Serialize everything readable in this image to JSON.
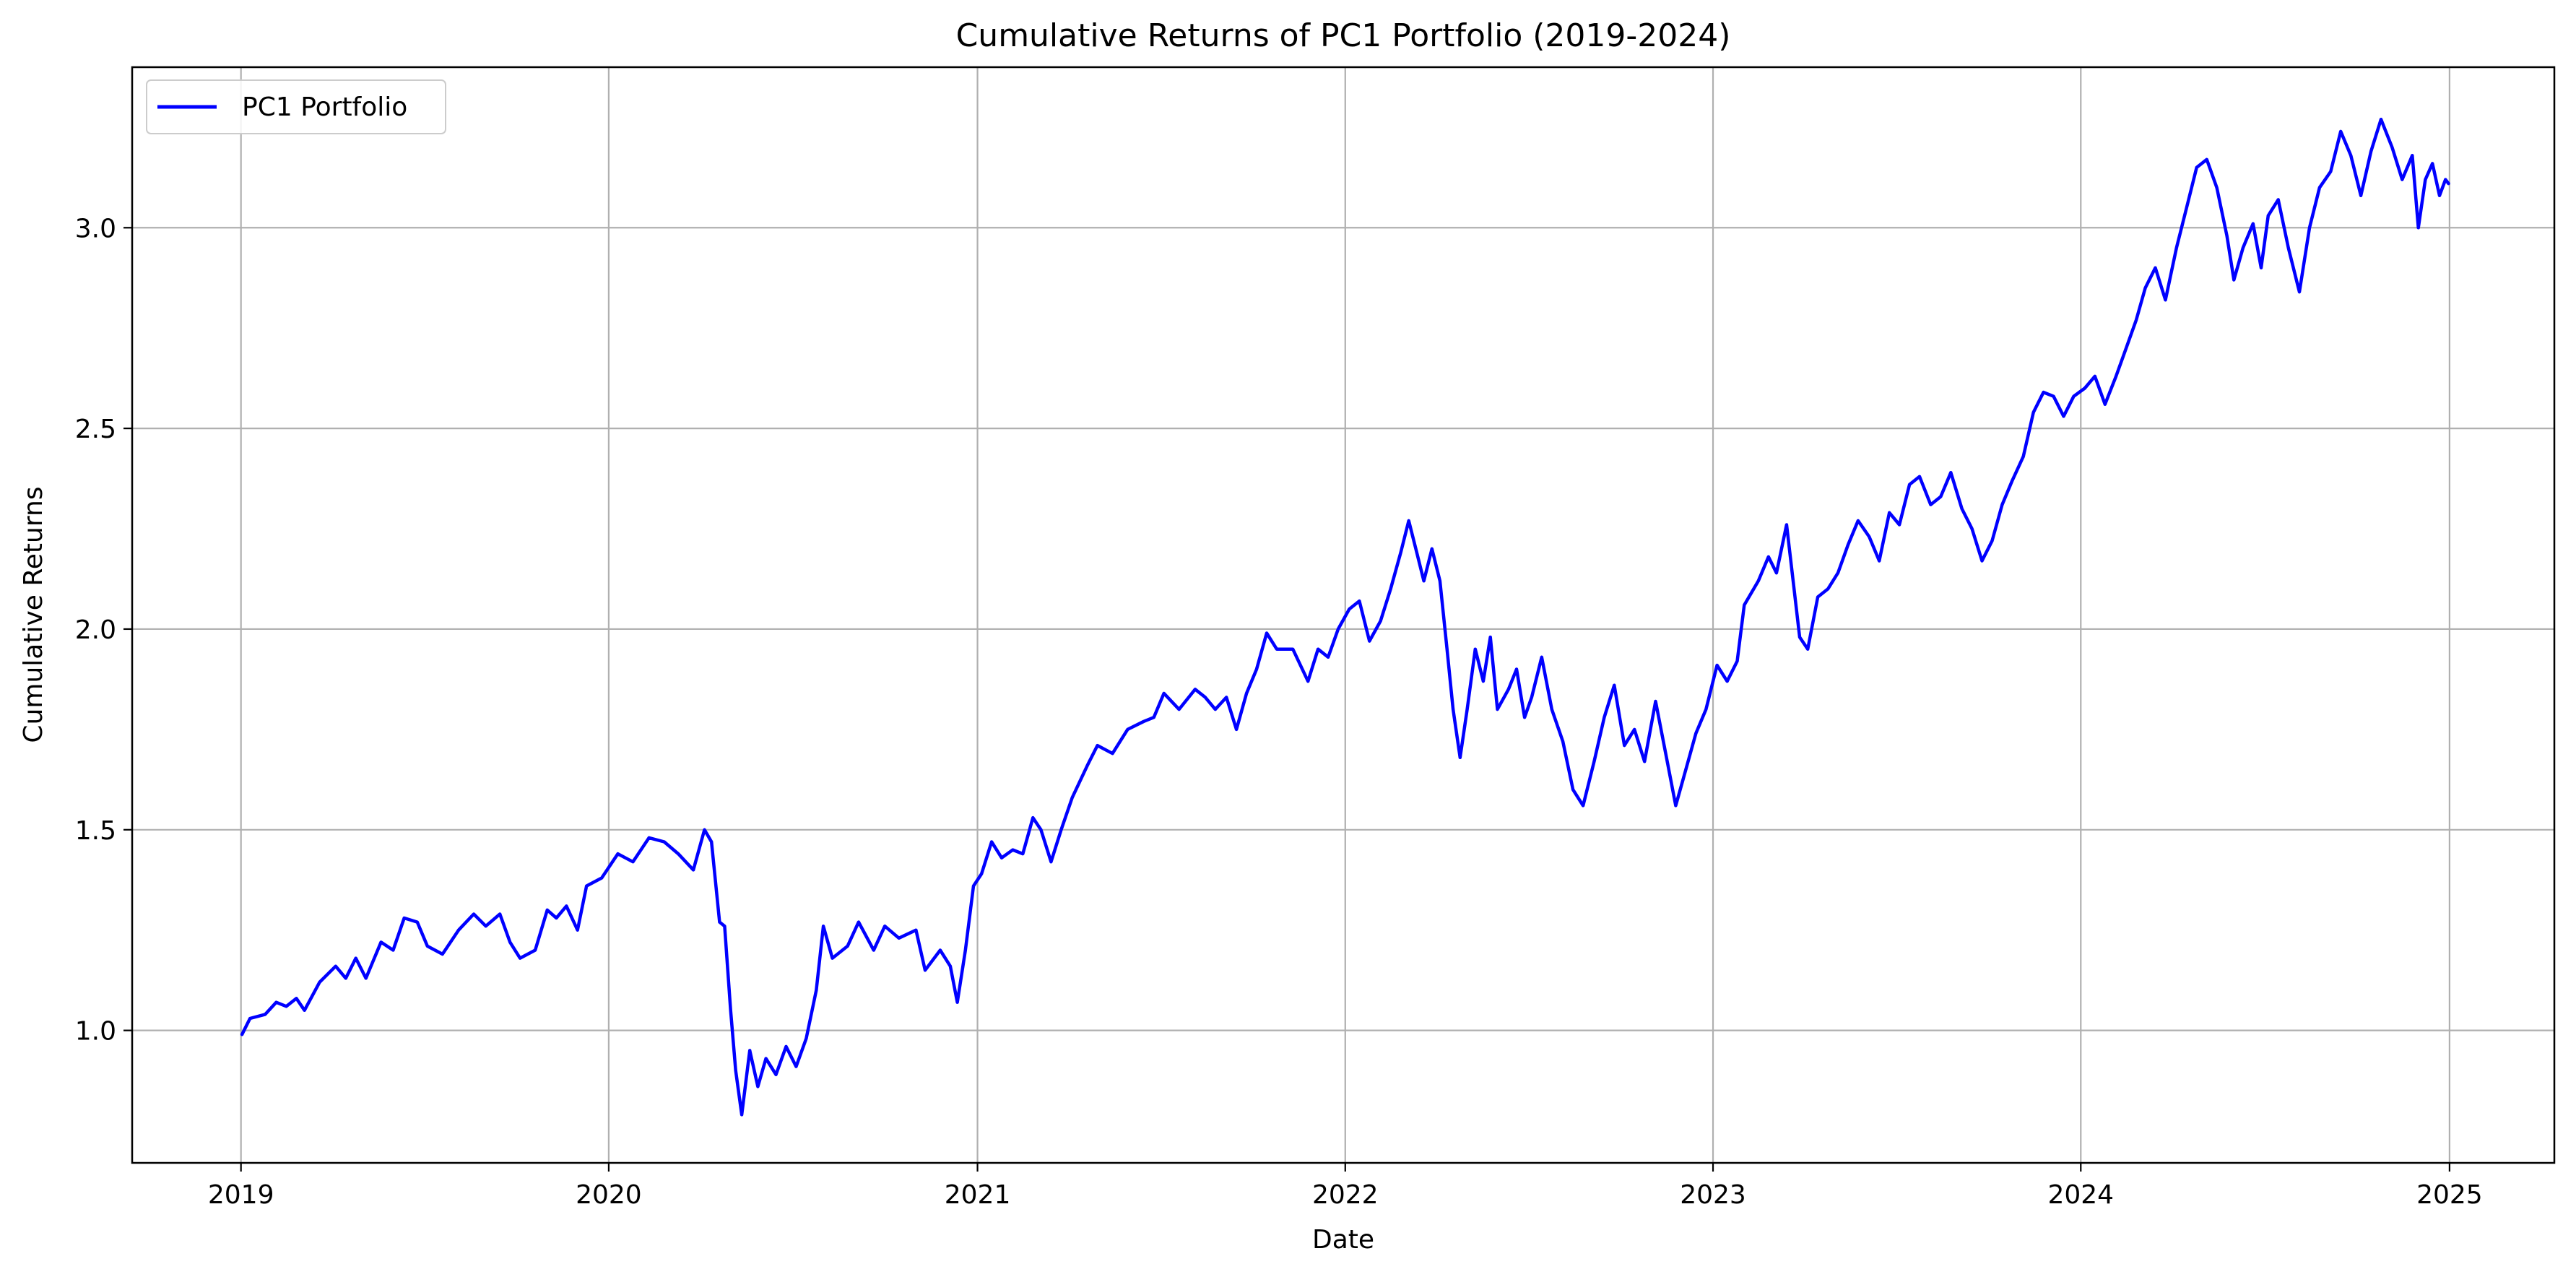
{
  "chart_data": {
    "type": "line",
    "title": "Cumulative Returns of PC1 Portfolio (2019-2024)",
    "xlabel": "Date",
    "ylabel": "Cumulative Returns",
    "x_type": "date",
    "xlim": [
      "2018-09-15",
      "2025-04-15"
    ],
    "ylim": [
      0.67,
      3.4
    ],
    "x_ticks": [
      {
        "value": "2019-01-01",
        "label": "2019"
      },
      {
        "value": "2020-01-01",
        "label": "2020"
      },
      {
        "value": "2021-01-01",
        "label": "2021"
      },
      {
        "value": "2022-01-01",
        "label": "2022"
      },
      {
        "value": "2023-01-01",
        "label": "2023"
      },
      {
        "value": "2024-01-01",
        "label": "2024"
      },
      {
        "value": "2025-01-01",
        "label": "2025"
      }
    ],
    "y_ticks": [
      {
        "value": 1.0,
        "label": "1.0"
      },
      {
        "value": 1.5,
        "label": "1.5"
      },
      {
        "value": 2.0,
        "label": "2.0"
      },
      {
        "value": 2.5,
        "label": "2.5"
      },
      {
        "value": 3.0,
        "label": "3.0"
      }
    ],
    "grid": true,
    "legend_position": "top-left",
    "series": [
      {
        "name": "PC1 Portfolio",
        "color": "#0000ff",
        "points": [
          [
            "2019-01-02",
            0.99
          ],
          [
            "2019-01-10",
            1.03
          ],
          [
            "2019-01-25",
            1.04
          ],
          [
            "2019-02-05",
            1.07
          ],
          [
            "2019-02-15",
            1.06
          ],
          [
            "2019-02-25",
            1.08
          ],
          [
            "2019-03-05",
            1.05
          ],
          [
            "2019-03-20",
            1.12
          ],
          [
            "2019-04-05",
            1.16
          ],
          [
            "2019-04-15",
            1.13
          ],
          [
            "2019-04-25",
            1.18
          ],
          [
            "2019-05-05",
            1.13
          ],
          [
            "2019-05-20",
            1.22
          ],
          [
            "2019-06-01",
            1.2
          ],
          [
            "2019-06-12",
            1.28
          ],
          [
            "2019-06-25",
            1.27
          ],
          [
            "2019-07-05",
            1.21
          ],
          [
            "2019-07-20",
            1.19
          ],
          [
            "2019-08-05",
            1.25
          ],
          [
            "2019-08-20",
            1.29
          ],
          [
            "2019-09-01",
            1.26
          ],
          [
            "2019-09-15",
            1.29
          ],
          [
            "2019-09-25",
            1.22
          ],
          [
            "2019-10-05",
            1.18
          ],
          [
            "2019-10-20",
            1.2
          ],
          [
            "2019-11-01",
            1.3
          ],
          [
            "2019-11-10",
            1.28
          ],
          [
            "2019-11-20",
            1.31
          ],
          [
            "2019-12-01",
            1.25
          ],
          [
            "2019-12-10",
            1.36
          ],
          [
            "2019-12-25",
            1.38
          ],
          [
            "2020-01-10",
            1.44
          ],
          [
            "2020-01-25",
            1.42
          ],
          [
            "2020-02-10",
            1.48
          ],
          [
            "2020-02-25",
            1.47
          ],
          [
            "2020-03-10",
            1.44
          ],
          [
            "2020-03-25",
            1.4
          ],
          [
            "2020-04-05",
            1.5
          ],
          [
            "2020-04-12",
            1.47
          ],
          [
            "2020-04-20",
            1.27
          ],
          [
            "2020-04-25",
            1.26
          ],
          [
            "2020-05-01",
            1.05
          ],
          [
            "2020-05-06",
            0.9
          ],
          [
            "2020-05-12",
            0.79
          ],
          [
            "2020-05-20",
            0.95
          ],
          [
            "2020-05-28",
            0.86
          ],
          [
            "2020-06-05",
            0.93
          ],
          [
            "2020-06-15",
            0.89
          ],
          [
            "2020-06-25",
            0.96
          ],
          [
            "2020-07-05",
            0.91
          ],
          [
            "2020-07-15",
            0.98
          ],
          [
            "2020-07-25",
            1.1
          ],
          [
            "2020-08-01",
            1.26
          ],
          [
            "2020-08-10",
            1.18
          ],
          [
            "2020-08-25",
            1.21
          ],
          [
            "2020-09-05",
            1.27
          ],
          [
            "2020-09-20",
            1.2
          ],
          [
            "2020-10-01",
            1.26
          ],
          [
            "2020-10-15",
            1.23
          ],
          [
            "2020-11-01",
            1.25
          ],
          [
            "2020-11-10",
            1.15
          ],
          [
            "2020-11-25",
            1.2
          ],
          [
            "2020-12-05",
            1.16
          ],
          [
            "2020-12-12",
            1.07
          ],
          [
            "2020-12-20",
            1.2
          ],
          [
            "2020-12-28",
            1.36
          ],
          [
            "2021-01-05",
            1.39
          ],
          [
            "2021-01-15",
            1.47
          ],
          [
            "2021-01-25",
            1.43
          ],
          [
            "2021-02-05",
            1.45
          ],
          [
            "2021-02-15",
            1.44
          ],
          [
            "2021-02-25",
            1.53
          ],
          [
            "2021-03-05",
            1.5
          ],
          [
            "2021-03-15",
            1.42
          ],
          [
            "2021-03-25",
            1.5
          ],
          [
            "2021-04-05",
            1.58
          ],
          [
            "2021-04-20",
            1.66
          ],
          [
            "2021-04-30",
            1.71
          ],
          [
            "2021-05-15",
            1.69
          ],
          [
            "2021-05-30",
            1.75
          ],
          [
            "2021-06-15",
            1.77
          ],
          [
            "2021-06-25",
            1.78
          ],
          [
            "2021-07-05",
            1.84
          ],
          [
            "2021-07-20",
            1.8
          ],
          [
            "2021-08-05",
            1.85
          ],
          [
            "2021-08-15",
            1.83
          ],
          [
            "2021-08-25",
            1.8
          ],
          [
            "2021-09-05",
            1.83
          ],
          [
            "2021-09-15",
            1.75
          ],
          [
            "2021-09-25",
            1.84
          ],
          [
            "2021-10-05",
            1.9
          ],
          [
            "2021-10-15",
            1.99
          ],
          [
            "2021-10-25",
            1.95
          ],
          [
            "2021-11-10",
            1.95
          ],
          [
            "2021-11-25",
            1.87
          ],
          [
            "2021-12-05",
            1.95
          ],
          [
            "2021-12-15",
            1.93
          ],
          [
            "2021-12-25",
            2.0
          ],
          [
            "2022-01-05",
            2.05
          ],
          [
            "2022-01-15",
            2.07
          ],
          [
            "2022-01-25",
            1.97
          ],
          [
            "2022-02-05",
            2.02
          ],
          [
            "2022-02-15",
            2.1
          ],
          [
            "2022-02-25",
            2.19
          ],
          [
            "2022-03-05",
            2.27
          ],
          [
            "2022-03-12",
            2.2
          ],
          [
            "2022-03-20",
            2.12
          ],
          [
            "2022-03-28",
            2.2
          ],
          [
            "2022-04-05",
            2.12
          ],
          [
            "2022-04-12",
            1.95
          ],
          [
            "2022-04-18",
            1.8
          ],
          [
            "2022-04-25",
            1.68
          ],
          [
            "2022-05-02",
            1.8
          ],
          [
            "2022-05-10",
            1.95
          ],
          [
            "2022-05-18",
            1.87
          ],
          [
            "2022-05-25",
            1.98
          ],
          [
            "2022-06-01",
            1.8
          ],
          [
            "2022-06-12",
            1.85
          ],
          [
            "2022-06-20",
            1.9
          ],
          [
            "2022-06-28",
            1.78
          ],
          [
            "2022-07-05",
            1.83
          ],
          [
            "2022-07-15",
            1.93
          ],
          [
            "2022-07-25",
            1.8
          ],
          [
            "2022-08-05",
            1.72
          ],
          [
            "2022-08-15",
            1.6
          ],
          [
            "2022-08-25",
            1.56
          ],
          [
            "2022-09-05",
            1.67
          ],
          [
            "2022-09-15",
            1.78
          ],
          [
            "2022-09-25",
            1.86
          ],
          [
            "2022-10-05",
            1.71
          ],
          [
            "2022-10-15",
            1.75
          ],
          [
            "2022-10-25",
            1.67
          ],
          [
            "2022-11-05",
            1.82
          ],
          [
            "2022-11-15",
            1.69
          ],
          [
            "2022-11-25",
            1.56
          ],
          [
            "2022-12-05",
            1.65
          ],
          [
            "2022-12-15",
            1.74
          ],
          [
            "2022-12-25",
            1.8
          ],
          [
            "2023-01-05",
            1.91
          ],
          [
            "2023-01-15",
            1.87
          ],
          [
            "2023-01-25",
            1.92
          ],
          [
            "2023-02-01",
            2.06
          ],
          [
            "2023-02-15",
            2.12
          ],
          [
            "2023-02-25",
            2.18
          ],
          [
            "2023-03-05",
            2.14
          ],
          [
            "2023-03-15",
            2.26
          ],
          [
            "2023-03-22",
            2.11
          ],
          [
            "2023-03-28",
            1.98
          ],
          [
            "2023-04-05",
            1.95
          ],
          [
            "2023-04-15",
            2.08
          ],
          [
            "2023-04-25",
            2.1
          ],
          [
            "2023-05-05",
            2.14
          ],
          [
            "2023-05-15",
            2.21
          ],
          [
            "2023-05-25",
            2.27
          ],
          [
            "2023-06-05",
            2.23
          ],
          [
            "2023-06-15",
            2.17
          ],
          [
            "2023-06-25",
            2.29
          ],
          [
            "2023-07-05",
            2.26
          ],
          [
            "2023-07-15",
            2.36
          ],
          [
            "2023-07-25",
            2.38
          ],
          [
            "2023-08-05",
            2.31
          ],
          [
            "2023-08-15",
            2.33
          ],
          [
            "2023-08-25",
            2.39
          ],
          [
            "2023-09-05",
            2.3
          ],
          [
            "2023-09-15",
            2.25
          ],
          [
            "2023-09-25",
            2.17
          ],
          [
            "2023-10-05",
            2.22
          ],
          [
            "2023-10-15",
            2.31
          ],
          [
            "2023-10-25",
            2.37
          ],
          [
            "2023-11-05",
            2.43
          ],
          [
            "2023-11-15",
            2.54
          ],
          [
            "2023-11-25",
            2.59
          ],
          [
            "2023-12-05",
            2.58
          ],
          [
            "2023-12-15",
            2.53
          ],
          [
            "2023-12-25",
            2.58
          ],
          [
            "2024-01-05",
            2.6
          ],
          [
            "2024-01-15",
            2.63
          ],
          [
            "2024-01-25",
            2.56
          ],
          [
            "2024-02-05",
            2.63
          ],
          [
            "2024-02-15",
            2.7
          ],
          [
            "2024-02-25",
            2.77
          ],
          [
            "2024-03-05",
            2.85
          ],
          [
            "2024-03-15",
            2.9
          ],
          [
            "2024-03-25",
            2.82
          ],
          [
            "2024-04-05",
            2.95
          ],
          [
            "2024-04-15",
            3.05
          ],
          [
            "2024-04-25",
            3.15
          ],
          [
            "2024-05-05",
            3.17
          ],
          [
            "2024-05-15",
            3.1
          ],
          [
            "2024-05-25",
            2.98
          ],
          [
            "2024-06-01",
            2.87
          ],
          [
            "2024-06-10",
            2.95
          ],
          [
            "2024-06-20",
            3.01
          ],
          [
            "2024-06-28",
            2.9
          ],
          [
            "2024-07-05",
            3.03
          ],
          [
            "2024-07-15",
            3.07
          ],
          [
            "2024-07-25",
            2.95
          ],
          [
            "2024-08-05",
            2.84
          ],
          [
            "2024-08-15",
            3.0
          ],
          [
            "2024-08-25",
            3.1
          ],
          [
            "2024-09-05",
            3.14
          ],
          [
            "2024-09-15",
            3.24
          ],
          [
            "2024-09-25",
            3.18
          ],
          [
            "2024-10-05",
            3.08
          ],
          [
            "2024-10-15",
            3.19
          ],
          [
            "2024-10-25",
            3.27
          ],
          [
            "2024-11-05",
            3.2
          ],
          [
            "2024-11-15",
            3.12
          ],
          [
            "2024-11-25",
            3.18
          ],
          [
            "2024-12-01",
            3.0
          ],
          [
            "2024-12-08",
            3.12
          ],
          [
            "2024-12-15",
            3.16
          ],
          [
            "2024-12-22",
            3.08
          ],
          [
            "2024-12-28",
            3.12
          ],
          [
            "2024-12-31",
            3.11
          ]
        ]
      }
    ]
  }
}
